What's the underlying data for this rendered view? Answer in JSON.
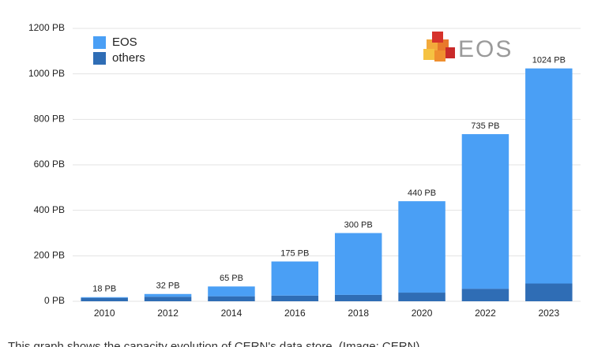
{
  "chart_data": {
    "type": "stacked_bar",
    "categories": [
      "2010",
      "2012",
      "2014",
      "2016",
      "2018",
      "2020",
      "2022",
      "2023"
    ],
    "series": [
      {
        "name": "others",
        "color": "#2f6db5",
        "values": [
          15,
          20,
          22,
          25,
          28,
          38,
          55,
          78
        ]
      },
      {
        "name": "EOS",
        "color": "#4a9ff5",
        "values": [
          3,
          12,
          43,
          150,
          272,
          402,
          680,
          946
        ]
      }
    ],
    "totals": {
      "values": [
        18,
        32,
        65,
        175,
        300,
        440,
        735,
        1024
      ],
      "value_labels": [
        "18 PB",
        "32 PB",
        "65 PB",
        "175 PB",
        "300 PB",
        "440 PB",
        "735 PB",
        "1024 PB"
      ]
    },
    "ylim": [
      0,
      1200
    ],
    "yticks": [
      {
        "value": 0,
        "label": "0 PB"
      },
      {
        "value": 200,
        "label": "200 PB"
      },
      {
        "value": 400,
        "label": "400 PB"
      },
      {
        "value": 600,
        "label": "600 PB"
      },
      {
        "value": 800,
        "label": "800 PB"
      },
      {
        "value": 1000,
        "label": "1000 PB"
      },
      {
        "value": 1200,
        "label": "1200 PB"
      }
    ],
    "grid": true,
    "legend_order": [
      "EOS",
      "others"
    ],
    "logo_text": "EOS",
    "caption": "This graph shows the capacity evolution of CERN's data store. (Image: CERN)"
  }
}
